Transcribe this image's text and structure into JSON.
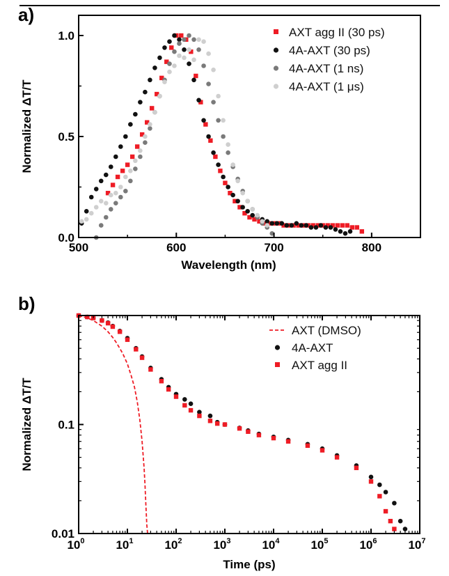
{
  "colors": {
    "red": "#ee1c25",
    "black": "#111111",
    "gray": "#7a7a7a",
    "lightgray": "#cfcfcf"
  },
  "chart_data": [
    {
      "panel": "a)",
      "type": "scatter",
      "xlabel": "Wavelength (nm)",
      "ylabel": "Normalized ΔT/T",
      "xlim": [
        500,
        850
      ],
      "ylim": [
        0,
        1.1
      ],
      "xticks": [
        500,
        600,
        700,
        800
      ],
      "xtick_labels": [
        "500",
        "600",
        "700",
        "800"
      ],
      "yticks": [
        0,
        0.5,
        1.0
      ],
      "ytick_labels": [
        "0.0",
        "0.5",
        "1.0"
      ],
      "legend_position": "top-right",
      "series": [
        {
          "name": "AXT agg II (30 ps)",
          "color": "#ee1c25",
          "marker": "square",
          "x": [
            530,
            535,
            540,
            545,
            550,
            555,
            560,
            565,
            570,
            575,
            580,
            585,
            590,
            595,
            600,
            605,
            610,
            615,
            620,
            625,
            630,
            635,
            640,
            645,
            650,
            655,
            660,
            665,
            670,
            675,
            680,
            685,
            690,
            695,
            700,
            705,
            710,
            715,
            720,
            725,
            730,
            735,
            740,
            745,
            750,
            755,
            760,
            765,
            770,
            775,
            780,
            785,
            790
          ],
          "y": [
            0.22,
            0.26,
            0.3,
            0.33,
            0.36,
            0.4,
            0.45,
            0.51,
            0.57,
            0.64,
            0.71,
            0.79,
            0.87,
            0.94,
            1.0,
            1.0,
            0.98,
            0.92,
            0.8,
            0.67,
            0.56,
            0.48,
            0.4,
            0.33,
            0.27,
            0.22,
            0.18,
            0.15,
            0.12,
            0.1,
            0.09,
            0.08,
            0.07,
            0.07,
            0.07,
            0.07,
            0.06,
            0.06,
            0.06,
            0.06,
            0.06,
            0.06,
            0.06,
            0.06,
            0.06,
            0.06,
            0.06,
            0.06,
            0.06,
            0.06,
            0.05,
            0.05,
            0.03
          ]
        },
        {
          "name": "4A-AXT (30 ps)",
          "color": "#111111",
          "marker": "circle",
          "x": [
            503,
            508,
            513,
            518,
            523,
            528,
            533,
            538,
            543,
            548,
            553,
            558,
            563,
            568,
            573,
            578,
            583,
            588,
            593,
            598,
            603,
            608,
            613,
            618,
            623,
            628,
            633,
            638,
            643,
            648,
            653,
            658,
            663,
            668,
            673,
            678,
            683,
            688,
            693,
            698,
            703,
            708,
            713,
            718,
            723,
            728,
            733,
            738,
            743,
            748,
            753,
            758,
            763,
            768,
            773,
            778
          ],
          "y": [
            0.07,
            0.13,
            0.2,
            0.24,
            0.28,
            0.31,
            0.35,
            0.4,
            0.45,
            0.5,
            0.56,
            0.61,
            0.67,
            0.72,
            0.78,
            0.84,
            0.89,
            0.94,
            0.97,
            1.0,
            0.98,
            0.93,
            0.86,
            0.78,
            0.68,
            0.58,
            0.5,
            0.42,
            0.36,
            0.3,
            0.25,
            0.21,
            0.18,
            0.15,
            0.13,
            0.11,
            0.1,
            0.09,
            0.08,
            0.07,
            0.07,
            0.07,
            0.06,
            0.06,
            0.07,
            0.06,
            0.06,
            0.05,
            0.05,
            0.06,
            0.05,
            0.05,
            0.04,
            0.03,
            0.02,
            0.03
          ]
        },
        {
          "name": "4A-AXT (1 ns)",
          "color": "#7a7a7a",
          "marker": "circle",
          "x": [
            518,
            523,
            528,
            533,
            538,
            543,
            548,
            553,
            558,
            563,
            568,
            573,
            578,
            583,
            588,
            593,
            598,
            603,
            608,
            613,
            618,
            623,
            628,
            633,
            638,
            643,
            648,
            653,
            658,
            663,
            668,
            673,
            678,
            683,
            688,
            693,
            698
          ],
          "y": [
            0.0,
            0.06,
            0.1,
            0.14,
            0.17,
            0.2,
            0.23,
            0.28,
            0.34,
            0.4,
            0.47,
            0.54,
            0.62,
            0.7,
            0.78,
            0.86,
            0.92,
            0.96,
            0.98,
            1.0,
            0.98,
            0.93,
            0.85,
            0.76,
            0.67,
            0.58,
            0.5,
            0.42,
            0.35,
            0.29,
            0.23,
            0.18,
            0.14,
            0.1,
            0.07,
            0.05,
            0.02
          ]
        },
        {
          "name": "4A-AXT (1 μs)",
          "color": "#cfcfcf",
          "marker": "circle",
          "x": [
            503,
            508,
            513,
            518,
            523,
            528,
            533,
            538,
            543,
            548,
            553,
            558,
            563,
            568,
            573,
            578,
            583,
            588,
            593,
            598,
            603,
            608,
            613,
            618,
            623,
            628,
            633,
            638,
            643,
            648,
            653,
            658,
            663,
            668,
            673,
            678,
            683,
            688,
            693
          ],
          "y": [
            0.08,
            0.09,
            0.12,
            0.15,
            0.18,
            0.17,
            0.21,
            0.22,
            0.25,
            0.3,
            0.33,
            0.38,
            0.43,
            0.5,
            0.56,
            0.62,
            0.7,
            0.77,
            0.82,
            0.85,
            0.9,
            0.89,
            0.93,
            0.88,
            0.98,
            0.97,
            0.91,
            0.83,
            0.7,
            0.58,
            0.46,
            0.36,
            0.28,
            0.22,
            0.18,
            0.14,
            0.11,
            0.08,
            0.06
          ]
        }
      ]
    },
    {
      "panel": "b)",
      "type": "scatter",
      "xlabel": "Time (ps)",
      "ylabel": "Normalized ΔT/T",
      "xscale": "log",
      "yscale": "log",
      "xlim": [
        1,
        10000000
      ],
      "ylim": [
        0.01,
        1
      ],
      "xtick_exponents": [
        0,
        1,
        2,
        3,
        4,
        5,
        6,
        7
      ],
      "xtick_base": "10",
      "yticks": [
        0.01,
        0.1
      ],
      "ytick_labels": [
        "0.01",
        "0.1"
      ],
      "legend_position": "top-right",
      "series": [
        {
          "name": "AXT (DMSO)",
          "color": "#ee1c25",
          "marker": "dashed-line",
          "x": [
            1,
            1.5,
            2,
            3,
            4,
            5,
            6,
            8,
            10,
            12,
            14,
            16,
            18,
            20,
            22,
            23,
            24,
            25,
            26
          ],
          "y": [
            1.0,
            0.95,
            0.9,
            0.8,
            0.71,
            0.63,
            0.56,
            0.45,
            0.36,
            0.28,
            0.22,
            0.16,
            0.11,
            0.07,
            0.04,
            0.028,
            0.018,
            0.012,
            0.01
          ]
        },
        {
          "name": "4A-AXT",
          "color": "#111111",
          "marker": "circle",
          "x": [
            1,
            1.5,
            2,
            3,
            4,
            5,
            7,
            10,
            15,
            20,
            30,
            50,
            70,
            100,
            150,
            200,
            300,
            500,
            700,
            1000,
            2000,
            3000,
            5000,
            10000,
            20000,
            50000,
            100000,
            200000,
            500000,
            1000000,
            1500000,
            2000000,
            3000000,
            4000000,
            5000000
          ],
          "y": [
            1.0,
            0.97,
            0.95,
            0.9,
            0.86,
            0.8,
            0.72,
            0.62,
            0.5,
            0.42,
            0.33,
            0.26,
            0.22,
            0.19,
            0.17,
            0.155,
            0.13,
            0.12,
            0.105,
            0.1,
            0.093,
            0.088,
            0.082,
            0.077,
            0.072,
            0.066,
            0.06,
            0.052,
            0.042,
            0.033,
            0.028,
            0.024,
            0.019,
            0.013,
            0.011
          ]
        },
        {
          "name": "AXT agg II",
          "color": "#ee1c25",
          "marker": "square",
          "x": [
            1,
            1.5,
            2,
            3,
            4,
            5,
            7,
            10,
            15,
            20,
            30,
            50,
            70,
            100,
            150,
            200,
            300,
            500,
            700,
            1000,
            2000,
            3000,
            5000,
            10000,
            20000,
            50000,
            100000,
            200000,
            500000,
            1000000,
            1500000,
            2000000,
            2500000,
            3000000
          ],
          "y": [
            1.0,
            0.97,
            0.95,
            0.9,
            0.85,
            0.79,
            0.71,
            0.6,
            0.49,
            0.41,
            0.32,
            0.25,
            0.21,
            0.18,
            0.15,
            0.135,
            0.12,
            0.108,
            0.102,
            0.1,
            0.092,
            0.086,
            0.08,
            0.075,
            0.07,
            0.064,
            0.058,
            0.05,
            0.04,
            0.03,
            0.022,
            0.016,
            0.013,
            0.011
          ]
        }
      ]
    }
  ]
}
